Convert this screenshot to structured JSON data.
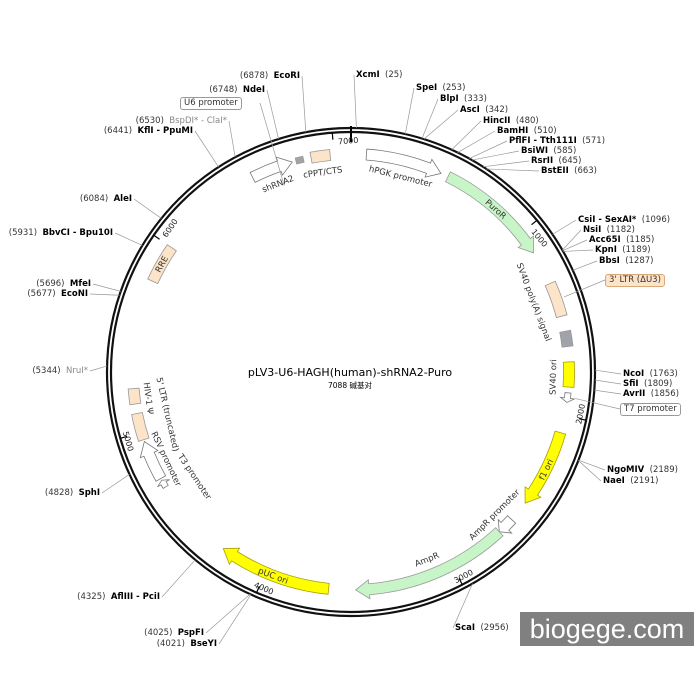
{
  "title": "pLV3-U6-HAGH(human)-shRNA2-Puro",
  "subtitle": "7088 碱基对",
  "total_bp": 7088,
  "watermark": "biogege.com",
  "colors": {
    "peach": "#fde3c8",
    "green": "#c8f5c8",
    "yellow": "#ffff00",
    "grey": "#a0a4aa",
    "white": "#ffffff"
  },
  "ticks": [
    "1000",
    "2000",
    "3000",
    "4000",
    "5000",
    "6000",
    "7000"
  ],
  "features": [
    {
      "label": "hPGK promoter",
      "start": 80,
      "end": 480,
      "color": "white",
      "arrow": true
    },
    {
      "label": "PuroR",
      "start": 520,
      "end": 1120,
      "color": "green",
      "arrow": true
    },
    {
      "label": "",
      "start": 1300,
      "end": 1480,
      "color": "peach",
      "arrow": false
    },
    {
      "label": "SV40 poly(A) signal",
      "start": 1560,
      "end": 1640,
      "color": "grey",
      "arrow": false
    },
    {
      "label": "SV40 ori",
      "start": 1720,
      "end": 1850,
      "color": "yellow",
      "arrow": false
    },
    {
      "label": "",
      "start": 1880,
      "end": 1930,
      "color": "white",
      "arrow": true
    },
    {
      "label": "f1 ori",
      "start": 2090,
      "end": 2500,
      "color": "yellow",
      "arrow": true
    },
    {
      "label": "AmpR promoter",
      "start": 2610,
      "end": 2700,
      "color": "white",
      "arrow": true
    },
    {
      "label": "AmpR",
      "start": 2700,
      "end": 3520,
      "color": "green",
      "arrow": true
    },
    {
      "label": "pUC ori",
      "start": 3660,
      "end": 4250,
      "color": "yellow",
      "arrow": true
    },
    {
      "label": "T3 promoter",
      "start": 4690,
      "end": 4730,
      "color": "white",
      "arrow": true
    },
    {
      "label": "RSV promoter",
      "start": 4740,
      "end": 4950,
      "color": "white",
      "arrow": true
    },
    {
      "label": "5' LTR (truncated)",
      "start": 4960,
      "end": 5100,
      "color": "peach",
      "arrow": false
    },
    {
      "label": "HIV-1 Ψ",
      "start": 5150,
      "end": 5230,
      "color": "peach",
      "arrow": false
    },
    {
      "label": "RRE",
      "start": 5800,
      "end": 6000,
      "color": "peach",
      "arrow": false
    },
    {
      "label": "shRNA2",
      "start": 6560,
      "end": 6780,
      "color": "white",
      "arrow": true
    },
    {
      "label": "",
      "start": 6800,
      "end": 6840,
      "color": "grey",
      "arrow": false
    },
    {
      "label": "cPPT/CTS",
      "start": 6880,
      "end": 6980,
      "color": "peach",
      "arrow": false
    }
  ],
  "sites": [
    {
      "name": "EcoRI",
      "pos": "(6878)",
      "bp": 6878
    },
    {
      "name": "NdeI",
      "pos": "(6748)",
      "bp": 6748
    },
    {
      "name": "BspDI* - ClaI*",
      "pos": "(6530)",
      "bp": 6530,
      "dim": true
    },
    {
      "name": "KflI - PpuMI",
      "pos": "(6441)",
      "bp": 6441
    },
    {
      "name": "AleI",
      "pos": "(6084)",
      "bp": 6084
    },
    {
      "name": "BbvCI - Bpu10I",
      "pos": "(5931)",
      "bp": 5931
    },
    {
      "name": "MfeI",
      "pos": "(5696)",
      "bp": 5696
    },
    {
      "name": "EcoNI",
      "pos": "(5677)",
      "bp": 5677
    },
    {
      "name": "NruI*",
      "pos": "(5344)",
      "bp": 5344,
      "dim": true
    },
    {
      "name": "SphI",
      "pos": "(4828)",
      "bp": 4828
    },
    {
      "name": "AflIII - PciI",
      "pos": "(4325)",
      "bp": 4325
    },
    {
      "name": "PspFI",
      "pos": "(4025)",
      "bp": 4025
    },
    {
      "name": "BseYI",
      "pos": "(4021)",
      "bp": 4021
    },
    {
      "name": "XcmI",
      "pos": "(25)",
      "bp": 25
    },
    {
      "name": "SpeI",
      "pos": "(253)",
      "bp": 253
    },
    {
      "name": "BlpI",
      "pos": "(333)",
      "bp": 333
    },
    {
      "name": "AscI",
      "pos": "(342)",
      "bp": 342
    },
    {
      "name": "HincII",
      "pos": "(480)",
      "bp": 480
    },
    {
      "name": "BamHI",
      "pos": "(510)",
      "bp": 510
    },
    {
      "name": "PflFI - Tth111I",
      "pos": "(571)",
      "bp": 571
    },
    {
      "name": "BsiWI",
      "pos": "(585)",
      "bp": 585
    },
    {
      "name": "RsrII",
      "pos": "(645)",
      "bp": 645
    },
    {
      "name": "BstEII",
      "pos": "(663)",
      "bp": 663
    },
    {
      "name": "CsiI - SexAI*",
      "pos": "(1096)",
      "bp": 1096
    },
    {
      "name": "NsiI",
      "pos": "(1182)",
      "bp": 1182
    },
    {
      "name": "Acc65I",
      "pos": "(1185)",
      "bp": 1185
    },
    {
      "name": "KpnI",
      "pos": "(1189)",
      "bp": 1189
    },
    {
      "name": "BbsI",
      "pos": "(1287)",
      "bp": 1287
    },
    {
      "name": "NcoI",
      "pos": "(1763)",
      "bp": 1763
    },
    {
      "name": "SfiI",
      "pos": "(1809)",
      "bp": 1809
    },
    {
      "name": "AvrII",
      "pos": "(1856)",
      "bp": 1856
    },
    {
      "name": "NgoMIV",
      "pos": "(2189)",
      "bp": 2189
    },
    {
      "name": "NaeI",
      "pos": "(2191)",
      "bp": 2191
    },
    {
      "name": "ScaI",
      "pos": "(2956)",
      "bp": 2956
    }
  ],
  "boxes": [
    {
      "label": "U6 promoter",
      "bp": 6700
    },
    {
      "label": "3' LTR (ΔU3)",
      "bp": 1390
    },
    {
      "label": "T7 promoter",
      "bp": 1905
    }
  ]
}
